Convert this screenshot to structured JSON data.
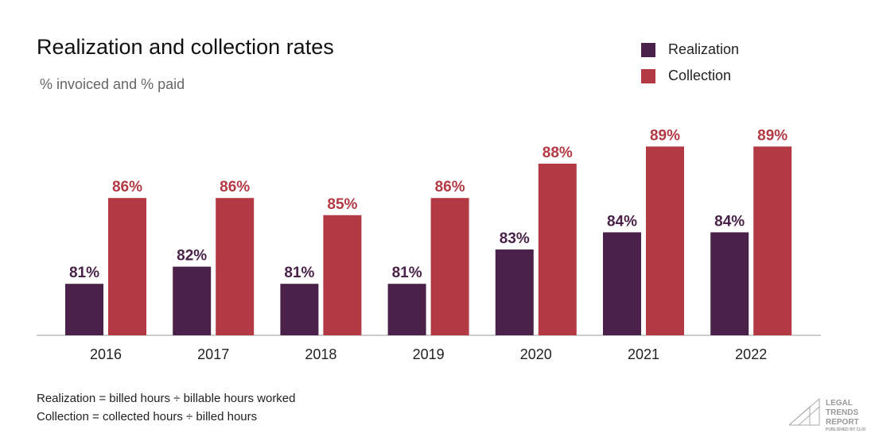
{
  "chart_data": {
    "type": "bar",
    "title": "Realization and collection rates",
    "subtitle": "% invoiced and % paid",
    "categories": [
      "2016",
      "2017",
      "2018",
      "2019",
      "2020",
      "2021",
      "2022"
    ],
    "series": [
      {
        "name": "Realization",
        "values": [
          81,
          82,
          81,
          81,
          83,
          84,
          84
        ],
        "labels": [
          "81%",
          "82%",
          "81%",
          "81%",
          "83%",
          "84%",
          "84%"
        ],
        "color": "#4a2249"
      },
      {
        "name": "Collection",
        "values": [
          86,
          86,
          85,
          86,
          88,
          89,
          89
        ],
        "labels": [
          "86%",
          "86%",
          "85%",
          "86%",
          "88%",
          "89%",
          "89%"
        ],
        "color": "#b33a44"
      }
    ],
    "ylim": [
      78,
      90
    ],
    "grid": false,
    "legend_position": "top-right",
    "notes": [
      "Realization = billed hours ÷ billable hours worked",
      "Collection = collected hours ÷ billed hours"
    ]
  },
  "logo": {
    "lines": [
      "LEGAL",
      "TRENDS",
      "REPORT"
    ],
    "tagline": "PUBLISHED BY CLIO"
  }
}
